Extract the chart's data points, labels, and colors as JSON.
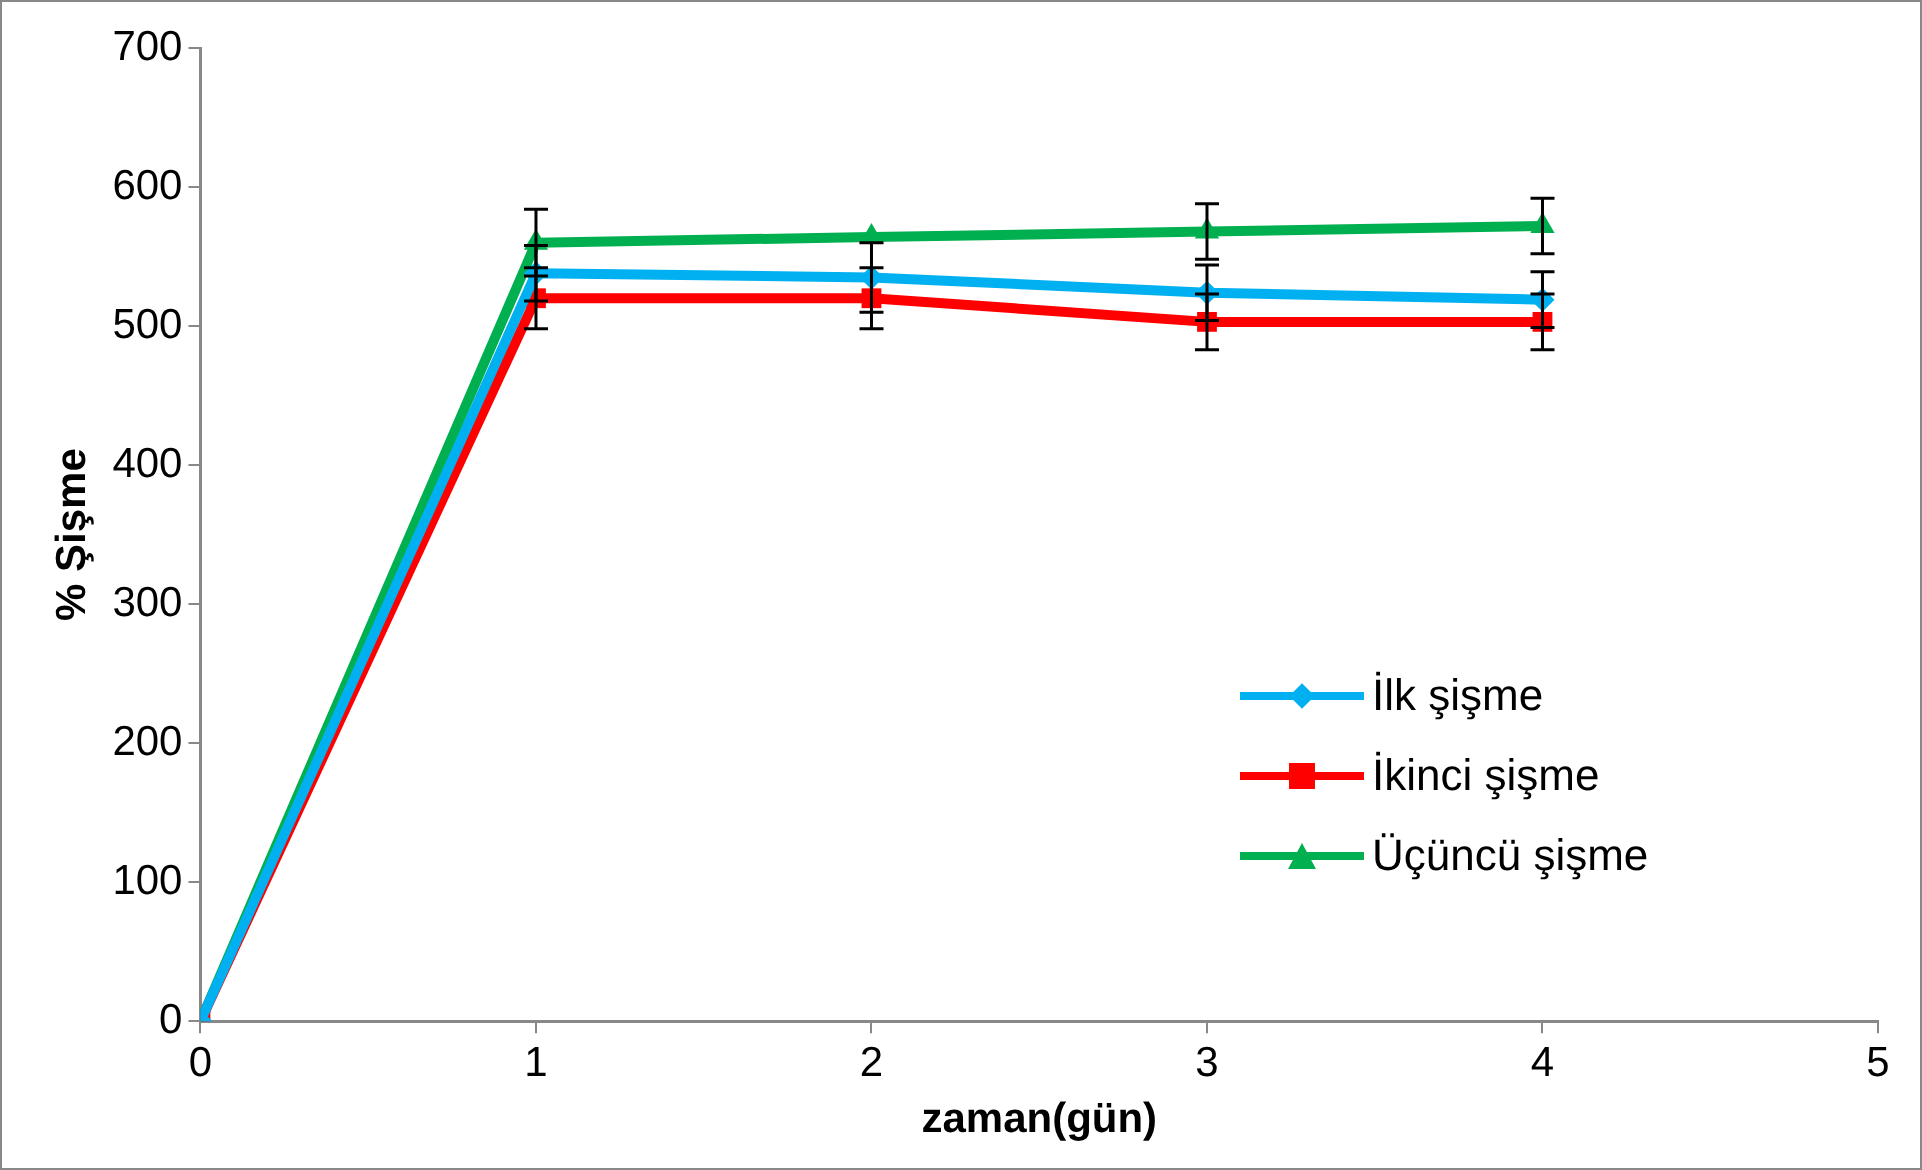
{
  "chart_data": {
    "type": "line",
    "xlabel": "zaman(gün)",
    "ylabel": "% Şişme",
    "x": [
      0,
      1,
      2,
      3,
      4
    ],
    "xlim": [
      0,
      5
    ],
    "xticks": [
      0,
      1,
      2,
      3,
      4,
      5
    ],
    "ylim": [
      0,
      700
    ],
    "yticks": [
      0,
      100,
      200,
      300,
      400,
      500,
      600,
      700
    ],
    "grid": false,
    "legend": "right",
    "series": [
      {
        "name": "İlk şişme",
        "color": "#00b0f0",
        "marker": "diamond",
        "values": [
          0,
          538,
          535,
          524,
          519
        ],
        "errors": [
          null,
          20,
          25,
          20,
          20
        ]
      },
      {
        "name": "İkinci şişme",
        "color": "#ff0000",
        "marker": "square",
        "values": [
          0,
          520,
          520,
          503,
          503
        ],
        "errors": [
          null,
          22,
          22,
          20,
          20
        ]
      },
      {
        "name": "Üçüncü şişme",
        "color": "#00b050",
        "marker": "triangle",
        "values": [
          0,
          560,
          564,
          568,
          572
        ],
        "errors": [
          null,
          24,
          null,
          20,
          20
        ]
      }
    ]
  }
}
